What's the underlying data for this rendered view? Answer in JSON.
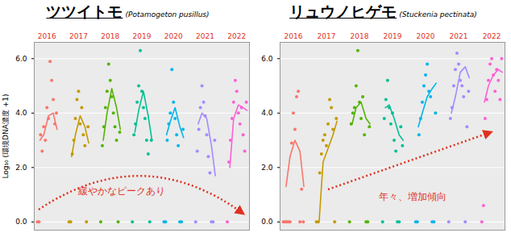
{
  "chart_data": [
    {
      "type": "scatter",
      "title": "ツツイトモ",
      "subtitle": "(Potamogeton pusillus)",
      "y_label": "Log₁₀ (環境DNA濃度 +1)",
      "annotation": "緩やかなピークあり",
      "xlim": [
        2016.2,
        2023.0
      ],
      "ylim": [
        -0.3,
        6.6
      ],
      "yticks": [
        0,
        2,
        4,
        6
      ],
      "grid": true,
      "tick_labels": "y",
      "series": [
        {
          "name": "2016",
          "color": "#F8766D",
          "x": [
            2016.3,
            2016.35,
            2016.4,
            2016.45,
            2016.5,
            2016.55,
            2016.6,
            2016.65,
            2016.7,
            2016.75,
            2016.8,
            2016.85,
            2016.9
          ],
          "values": [
            0,
            0,
            3.2,
            2.6,
            3.5,
            3.0,
            4.2,
            3.8,
            5.9,
            5.2,
            4.5,
            3.6,
            4.0
          ],
          "trend_x": [
            2016.38,
            2016.5,
            2016.65,
            2016.8,
            2016.92
          ],
          "trend": [
            3.0,
            3.2,
            3.9,
            4.0,
            3.4
          ]
        },
        {
          "name": "2017",
          "color": "#C49A00",
          "x": [
            2017.3,
            2017.35,
            2017.4,
            2017.45,
            2017.5,
            2017.55,
            2017.6,
            2017.65,
            2017.7,
            2017.75,
            2017.8,
            2017.85,
            2017.9
          ],
          "values": [
            0,
            0,
            2.5,
            3.0,
            3.8,
            4.5,
            4.8,
            3.6,
            4.2,
            3.2,
            2.8,
            0,
            3.5
          ],
          "trend_x": [
            2017.38,
            2017.5,
            2017.65,
            2017.8,
            2017.92
          ],
          "trend": [
            2.4,
            3.2,
            3.9,
            3.5,
            2.9
          ]
        },
        {
          "name": "2018",
          "color": "#53B400",
          "x": [
            2018.3,
            2018.35,
            2018.4,
            2018.45,
            2018.5,
            2018.55,
            2018.6,
            2018.65,
            2018.7,
            2018.75,
            2018.8,
            2018.85,
            2018.9
          ],
          "values": [
            0,
            2.8,
            3.5,
            4.2,
            4.8,
            5.8,
            5.2,
            4.6,
            4.0,
            3.5,
            3.0,
            0,
            3.3
          ],
          "trend_x": [
            2018.38,
            2018.5,
            2018.65,
            2018.8,
            2018.92
          ],
          "trend": [
            3.0,
            4.0,
            4.9,
            4.2,
            3.4
          ]
        },
        {
          "name": "2019",
          "color": "#00C094",
          "x": [
            2019.3,
            2019.35,
            2019.4,
            2019.45,
            2019.5,
            2019.55,
            2019.6,
            2019.65,
            2019.7,
            2019.75,
            2019.8,
            2019.85,
            2019.9
          ],
          "values": [
            0,
            3.2,
            3.6,
            4.4,
            5.0,
            6.3,
            4.8,
            4.2,
            3.8,
            3.0,
            2.5,
            0,
            3.0
          ],
          "trend_x": [
            2019.38,
            2019.5,
            2019.65,
            2019.8,
            2019.92
          ],
          "trend": [
            3.3,
            4.1,
            4.8,
            3.9,
            3.0
          ]
        },
        {
          "name": "2020",
          "color": "#00B6EB",
          "x": [
            2020.3,
            2020.35,
            2020.4,
            2020.45,
            2020.5,
            2020.55,
            2020.6,
            2020.65,
            2020.7,
            2020.75,
            2020.8,
            2020.85,
            2020.9
          ],
          "values": [
            0,
            0,
            3.0,
            3.6,
            4.0,
            5.6,
            4.4,
            3.8,
            3.2,
            2.8,
            0,
            0,
            3.4
          ],
          "trend_x": [
            2020.38,
            2020.5,
            2020.65,
            2020.8,
            2020.92
          ],
          "trend": [
            3.2,
            3.7,
            4.2,
            3.5,
            3.1
          ]
        },
        {
          "name": "2021",
          "color": "#A58AFF",
          "x": [
            2021.3,
            2021.35,
            2021.4,
            2021.45,
            2021.5,
            2021.55,
            2021.6,
            2021.65,
            2021.7,
            2021.75,
            2021.8,
            2021.85,
            2021.9
          ],
          "values": [
            0,
            2.6,
            3.4,
            4.2,
            5.0,
            4.4,
            3.9,
            3.2,
            2.4,
            1.8,
            0,
            0,
            3.0
          ],
          "trend_x": [
            2021.38,
            2021.5,
            2021.65,
            2021.8,
            2021.92
          ],
          "trend": [
            3.6,
            4.0,
            3.8,
            2.8,
            1.7
          ]
        },
        {
          "name": "2022",
          "color": "#FB61D7",
          "x": [
            2022.3,
            2022.35,
            2022.4,
            2022.45,
            2022.5,
            2022.55,
            2022.6,
            2022.65,
            2022.7,
            2022.75,
            2022.8,
            2022.85,
            2022.9
          ],
          "values": [
            0,
            2.2,
            3.0,
            3.8,
            4.4,
            5.2,
            4.8,
            4.0,
            3.6,
            4.2,
            3.2,
            2.6,
            4.4
          ],
          "trend_x": [
            2022.38,
            2022.5,
            2022.65,
            2022.8,
            2022.92
          ],
          "trend": [
            2.0,
            3.8,
            4.3,
            4.2,
            4.1
          ]
        }
      ]
    },
    {
      "type": "scatter",
      "title": "リュウノヒゲモ",
      "subtitle": "(Stuckenia pectinata)",
      "annotation": "年々、増加傾向",
      "xlim": [
        2016.2,
        2023.0
      ],
      "ylim": [
        -0.3,
        6.6
      ],
      "yticks": [
        0,
        2,
        4,
        6
      ],
      "grid": true,
      "tick_labels": "y",
      "series": [
        {
          "name": "2016",
          "color": "#F8766D",
          "x": [
            2016.3,
            2016.35,
            2016.4,
            2016.45,
            2016.5,
            2016.55,
            2016.6,
            2016.65,
            2016.7,
            2016.75,
            2016.8,
            2016.85,
            2016.9
          ],
          "values": [
            0,
            0,
            0,
            0,
            0,
            2.9,
            4.0,
            3.4,
            4.6,
            4.8,
            0,
            1.2,
            0
          ],
          "trend_x": [
            2016.38,
            2016.5,
            2016.65,
            2016.8,
            2016.92
          ],
          "trend": [
            1.3,
            2.4,
            3.0,
            2.6,
            1.3
          ]
        },
        {
          "name": "2017",
          "color": "#C49A00",
          "x": [
            2017.3,
            2017.35,
            2017.4,
            2017.45,
            2017.5,
            2017.55,
            2017.6,
            2017.65,
            2017.7,
            2017.75,
            2017.8,
            2017.85,
            2017.9
          ],
          "values": [
            0,
            0,
            1.8,
            2.5,
            3.0,
            3.2,
            2.8,
            3.6,
            4.5,
            4.2,
            3.4,
            0,
            3.8
          ],
          "trend_x": [
            2017.38,
            2017.5,
            2017.65,
            2017.8,
            2017.92
          ],
          "trend": [
            0,
            2.2,
            2.7,
            3.2,
            3.7
          ]
        },
        {
          "name": "2018",
          "color": "#53B400",
          "x": [
            2018.3,
            2018.35,
            2018.4,
            2018.45,
            2018.5,
            2018.55,
            2018.6,
            2018.65,
            2018.7,
            2018.75,
            2018.8,
            2018.85,
            2018.9
          ],
          "values": [
            0,
            3.6,
            4.0,
            4.2,
            5.0,
            6.3,
            4.4,
            3.8,
            4.6,
            3.2,
            0,
            0,
            3.5
          ],
          "trend_x": [
            2018.38,
            2018.5,
            2018.65,
            2018.8,
            2018.92
          ],
          "trend": [
            3.6,
            4.2,
            4.4,
            3.8,
            3.6
          ]
        },
        {
          "name": "2019",
          "color": "#00C094",
          "x": [
            2019.3,
            2019.35,
            2019.4,
            2019.45,
            2019.5,
            2019.55,
            2019.6,
            2019.65,
            2019.7,
            2019.75,
            2019.8,
            2019.85,
            2019.9
          ],
          "values": [
            0,
            3.8,
            4.5,
            5.2,
            4.2,
            3.6,
            4.0,
            3.0,
            2.6,
            0,
            0,
            3.5,
            2.8
          ],
          "trend_x": [
            2019.38,
            2019.5,
            2019.65,
            2019.8,
            2019.92
          ],
          "trend": [
            4.2,
            4.3,
            3.8,
            3.2,
            3.0
          ]
        },
        {
          "name": "2020",
          "color": "#00B6EB",
          "x": [
            2020.3,
            2020.35,
            2020.4,
            2020.45,
            2020.5,
            2020.55,
            2020.6,
            2020.65,
            2020.7,
            2020.75,
            2020.8,
            2020.85,
            2020.9
          ],
          "values": [
            0,
            0,
            3.2,
            3.8,
            4.4,
            5.0,
            5.4,
            5.8,
            4.8,
            4.6,
            0,
            0,
            4.0
          ],
          "trend_x": [
            2020.38,
            2020.5,
            2020.65,
            2020.8,
            2020.92
          ],
          "trend": [
            3.5,
            4.0,
            4.6,
            4.9,
            5.1
          ]
        },
        {
          "name": "2021",
          "color": "#A58AFF",
          "x": [
            2021.3,
            2021.35,
            2021.4,
            2021.45,
            2021.5,
            2021.55,
            2021.6,
            2021.65,
            2021.7,
            2021.75,
            2021.8,
            2021.85,
            2021.9
          ],
          "values": [
            0,
            3.8,
            4.2,
            5.0,
            5.6,
            6.2,
            5.8,
            5.2,
            5.0,
            4.6,
            0,
            3.5,
            4.8
          ],
          "trend_x": [
            2021.38,
            2021.5,
            2021.65,
            2021.8,
            2021.92
          ],
          "trend": [
            4.0,
            4.6,
            5.5,
            5.7,
            5.3
          ]
        },
        {
          "name": "2022",
          "color": "#FB61D7",
          "x": [
            2022.3,
            2022.35,
            2022.4,
            2022.45,
            2022.5,
            2022.55,
            2022.6,
            2022.65,
            2022.7,
            2022.75,
            2022.8,
            2022.85,
            2022.9
          ],
          "values": [
            0,
            0.6,
            3.8,
            4.5,
            5.2,
            5.8,
            6.0,
            5.4,
            4.8,
            5.6,
            5.2,
            4.5,
            6.0
          ],
          "trend_x": [
            2022.38,
            2022.5,
            2022.65,
            2022.8,
            2022.92
          ],
          "trend": [
            4.4,
            5.0,
            5.4,
            5.6,
            5.5
          ]
        }
      ]
    }
  ]
}
